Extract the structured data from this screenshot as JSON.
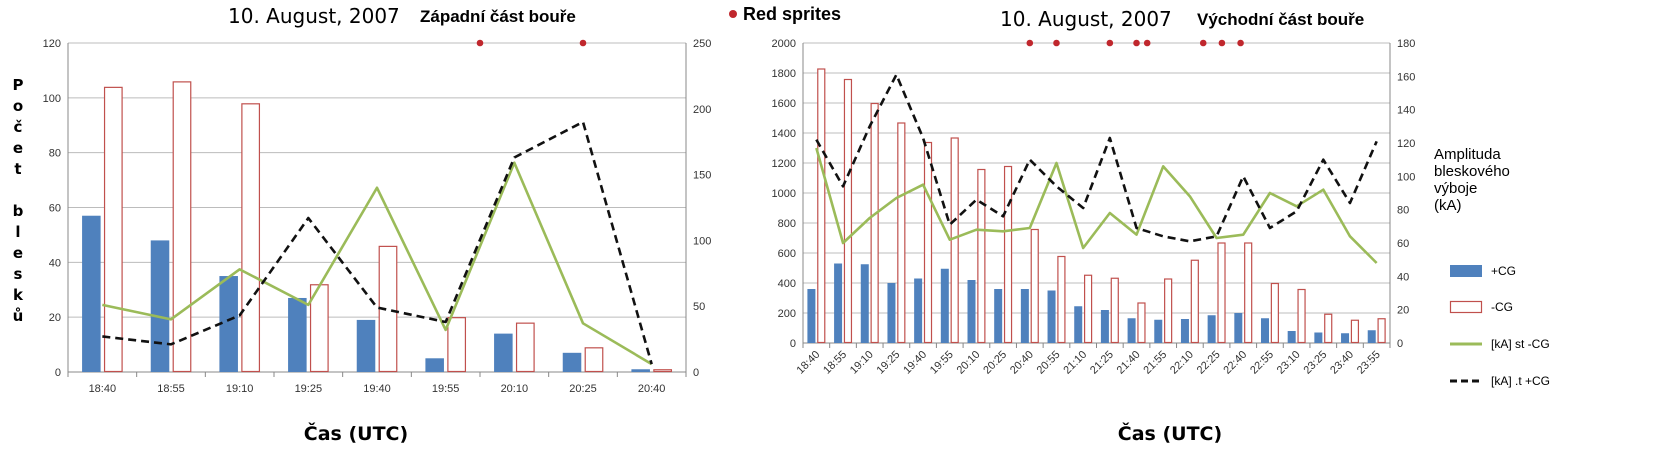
{
  "sprite_legend": "Red sprites",
  "left_ylabel_letters": [
    "P",
    "o",
    "č",
    "e",
    "t",
    "",
    "b",
    "l",
    "e",
    "s",
    "k",
    "ů"
  ],
  "amp_label_lines": [
    "Amplituda",
    "bleskového",
    "výboje",
    "(kA)"
  ],
  "legend": [
    {
      "label": "+CG",
      "kind": "bar-blue"
    },
    {
      "label": "-CG",
      "kind": "bar-red"
    },
    {
      "label": "[kA]   st -CG",
      "kind": "line-green"
    },
    {
      "label": "[kA]   .t +CG",
      "kind": "line-black-dash"
    }
  ],
  "colors": {
    "pos_bar": "#4f81bd",
    "neg_bar": "#c0504d",
    "green": "#9bbb59",
    "black": "#111111",
    "sprite": "#c0272d",
    "grid": "#bcbcbc"
  },
  "chart_data": [
    {
      "type": "bar",
      "title_date": "10. August, 2007",
      "title_part": "Západní část bouře",
      "xlabel": "Čas (UTC)",
      "ylim": [
        0,
        120
      ],
      "y_ticks": [
        "0",
        "20",
        "40",
        "60",
        "80",
        "100",
        "120"
      ],
      "y2lim": [
        0,
        250
      ],
      "y2_ticks": [
        "0",
        "50",
        "100",
        "150",
        "200",
        "250"
      ],
      "categories": [
        "18:40",
        "18:55",
        "19:10",
        "19:25",
        "19:40",
        "19:55",
        "20:10",
        "20:25",
        "20:40"
      ],
      "series": [
        {
          "name": "+CG",
          "axis": "left",
          "values": [
            57,
            48,
            35,
            27,
            19,
            5,
            14,
            7,
            1
          ]
        },
        {
          "name": "-CG",
          "axis": "left",
          "values": [
            104,
            106,
            98,
            32,
            46,
            20,
            18,
            9,
            1
          ]
        },
        {
          "name": "[kA]   st -CG",
          "axis": "right",
          "values": [
            51,
            40,
            78,
            51,
            140,
            32,
            159,
            37,
            6
          ]
        },
        {
          "name": "[kA]   .t +CG",
          "axis": "right",
          "values": [
            27,
            21,
            43,
            117,
            49,
            38,
            163,
            190,
            6
          ]
        }
      ],
      "sprites": [
        5.5,
        7
      ]
    },
    {
      "type": "bar",
      "title_date": "10. August, 2007",
      "title_part": "Východní část bouře",
      "xlabel": "Čas (UTC)",
      "ylim": [
        0,
        2000
      ],
      "y_ticks": [
        "0",
        "200",
        "400",
        "600",
        "800",
        "1000",
        "1200",
        "1400",
        "1600",
        "1800",
        "2000"
      ],
      "y2lim": [
        0,
        180
      ],
      "y2_ticks": [
        "0",
        "20",
        "40",
        "60",
        "80",
        "100",
        "120",
        "140",
        "160",
        "180"
      ],
      "categories": [
        "18:40",
        "18:55",
        "19:10",
        "19:25",
        "19:40",
        "19:55",
        "20:10",
        "20:25",
        "20:40",
        "20:55",
        "21:10",
        "21:25",
        "21:40",
        "21:55",
        "22:10",
        "22:25",
        "22:40",
        "22:55",
        "23:10",
        "23:25",
        "23:40",
        "23:55"
      ],
      "series": [
        {
          "name": "+CG",
          "axis": "left",
          "values": [
            360,
            530,
            525,
            400,
            430,
            495,
            420,
            360,
            360,
            350,
            245,
            220,
            165,
            155,
            160,
            185,
            200,
            165,
            80,
            70,
            65,
            85
          ]
        },
        {
          "name": "-CG",
          "axis": "left",
          "values": [
            1830,
            1760,
            1600,
            1470,
            1340,
            1370,
            1160,
            1180,
            760,
            580,
            455,
            435,
            270,
            430,
            555,
            670,
            670,
            400,
            360,
            195,
            155,
            165
          ]
        },
        {
          "name": "[kA]   st -CG",
          "axis": "right",
          "values": [
            117,
            60,
            75,
            87,
            95,
            62,
            68,
            67,
            69,
            108,
            57,
            78,
            65,
            106,
            88,
            63,
            65,
            90,
            82,
            92,
            64,
            48
          ]
        },
        {
          "name": "[kA]   .t +CG",
          "axis": "right",
          "values": [
            122,
            94,
            130,
            161,
            123,
            71,
            86,
            76,
            110,
            94,
            81,
            123,
            69,
            64,
            61,
            64,
            100,
            69,
            79,
            110,
            84,
            121
          ]
        }
      ],
      "sprites": [
        8,
        9,
        11,
        12,
        12.4,
        14.5,
        15.2,
        15.9
      ]
    }
  ]
}
